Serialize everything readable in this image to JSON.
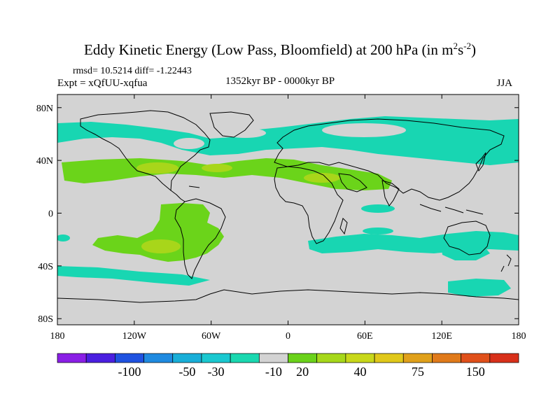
{
  "title": {
    "main": "Eddy Kinetic Energy (Low Pass, Bloomfield) at 200 hPa (in m",
    "sup1": "2",
    "mid": "s",
    "sup2": "-2",
    "close": ")"
  },
  "stats": "rmsd= 10.5214 diff= -1.22443",
  "experiment": "Expt = xQfUU-xqfua",
  "period": "1352kyr BP - 0000kyr BP",
  "season": "JJA",
  "map": {
    "lat_labels": [
      "80N",
      "40N",
      "0",
      "40S",
      "80S"
    ],
    "lat_values": [
      80,
      40,
      0,
      -40,
      -80
    ],
    "lon_labels": [
      "180",
      "120W",
      "60W",
      "0",
      "60E",
      "120E",
      "180"
    ],
    "lon_values": [
      -180,
      -120,
      -60,
      0,
      60,
      120,
      180
    ],
    "background": "#d3d3d3"
  },
  "colorbar": {
    "labels": [
      "-100",
      "-50",
      "-30",
      "-10",
      "20",
      "40",
      "75",
      "150"
    ],
    "colors": [
      "#8a1fe6",
      "#4a1fe0",
      "#1f52e0",
      "#1f8ae0",
      "#18aed8",
      "#1ac8d0",
      "#1ad8b0",
      "#d3d3d3",
      "#6ad21a",
      "#a6d81a",
      "#c8d81a",
      "#e0c81a",
      "#e0a01a",
      "#e07a1a",
      "#e0501a",
      "#d8301a"
    ]
  },
  "field": {
    "cyan": "#18d6b2",
    "green": "#6bd41a",
    "yellowgreen": "#a8d61a"
  }
}
